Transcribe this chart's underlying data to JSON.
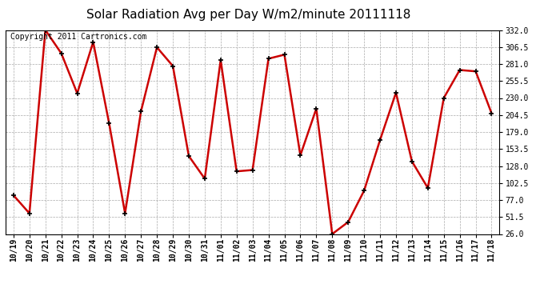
{
  "title": "Solar Radiation Avg per Day W/m2/minute 20111118",
  "copyright_text": "Copyright 2011 Cartronics.com",
  "dates": [
    "10/19",
    "10/20",
    "10/21",
    "10/22",
    "10/23",
    "10/24",
    "10/25",
    "10/26",
    "10/27",
    "10/28",
    "10/29",
    "10/30",
    "10/31",
    "11/01",
    "11/02",
    "11/03",
    "11/04",
    "11/05",
    "11/06",
    "11/07",
    "11/08",
    "11/09",
    "11/10",
    "11/11",
    "11/12",
    "11/13",
    "11/14",
    "11/15",
    "11/16",
    "11/17",
    "11/18"
  ],
  "values": [
    84,
    57,
    332,
    297,
    237,
    314,
    192,
    57,
    210,
    306,
    278,
    143,
    109,
    287,
    120,
    122,
    289,
    295,
    144,
    214,
    26,
    44,
    91,
    167,
    238,
    135,
    95,
    230,
    272,
    270,
    207
  ],
  "yticks": [
    26.0,
    51.5,
    77.0,
    102.5,
    128.0,
    153.5,
    179.0,
    204.5,
    230.0,
    255.5,
    281.0,
    306.5,
    332.0
  ],
  "ymin": 26.0,
  "ymax": 332.0,
  "line_color": "#cc0000",
  "marker": "+",
  "marker_color": "#000000",
  "marker_size": 5,
  "line_width": 1.8,
  "background_color": "#ffffff",
  "grid_color": "#aaaaaa",
  "title_fontsize": 11,
  "tick_fontsize": 7,
  "copyright_fontsize": 7
}
